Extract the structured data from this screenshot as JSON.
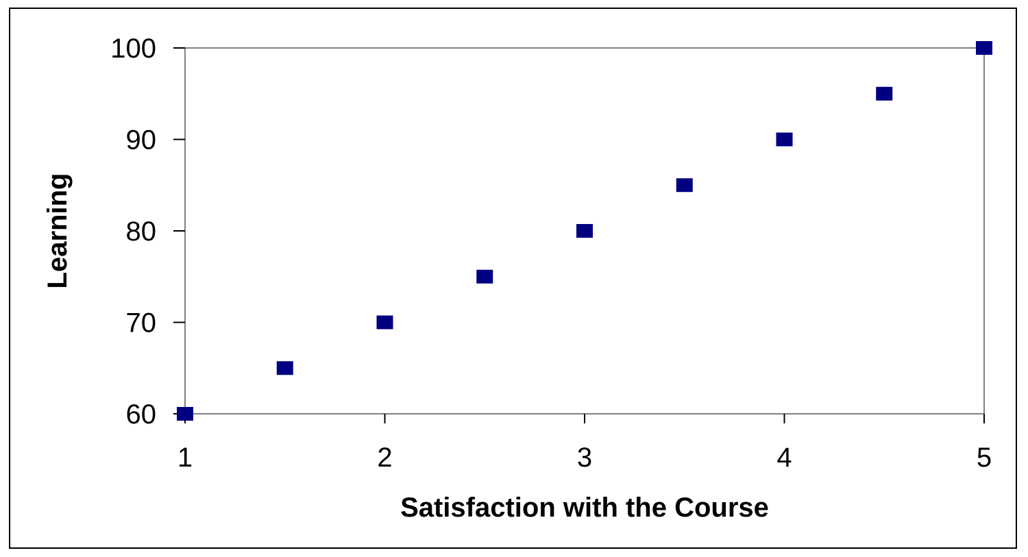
{
  "chart_data": {
    "type": "scatter",
    "title": "",
    "xlabel": "Satisfaction with the Course",
    "ylabel": "Learning",
    "xlim": [
      1,
      5
    ],
    "ylim": [
      60,
      100
    ],
    "x_ticks": [
      "1",
      "2",
      "3",
      "4",
      "5"
    ],
    "y_ticks": [
      "60",
      "70",
      "80",
      "90",
      "100"
    ],
    "grid": false,
    "legend": "none",
    "marker": "square",
    "marker_color": "#000080",
    "x": [
      1,
      1.5,
      2,
      2.5,
      3,
      3.5,
      4,
      4.5,
      5
    ],
    "y": [
      60,
      65,
      70,
      75,
      80,
      85,
      90,
      95,
      100
    ]
  }
}
